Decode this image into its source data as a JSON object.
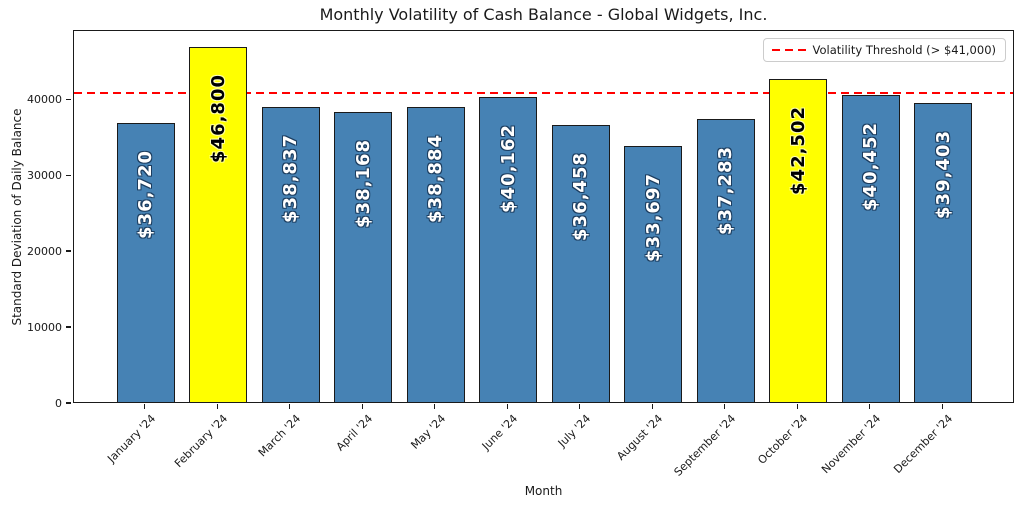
{
  "title": "Monthly Volatility of Cash Balance - Global Widgets, Inc.",
  "chart_data": {
    "type": "bar",
    "title": "Monthly Volatility of Cash Balance - Global Widgets, Inc.",
    "xlabel": "Month",
    "ylabel": "Standard Deviation of Daily Balance",
    "categories": [
      "January '24",
      "February '24",
      "March '24",
      "April '24",
      "May '24",
      "June '24",
      "July '24",
      "August '24",
      "September '24",
      "October '24",
      "November '24",
      "December '24"
    ],
    "values": [
      36720,
      46800,
      38837,
      38168,
      38884,
      40162,
      36458,
      33697,
      37283,
      42502,
      40452,
      39403
    ],
    "value_labels": [
      "$36,720",
      "$46,800",
      "$38,837",
      "$38,168",
      "$38,884",
      "$40,162",
      "$36,458",
      "$33,697",
      "$37,283",
      "$42,502",
      "$40,452",
      "$39,403"
    ],
    "highlighted_categories": [
      "February '24",
      "October '24"
    ],
    "yticks": [
      0,
      10000,
      20000,
      30000,
      40000
    ],
    "ylim": [
      0,
      49140
    ],
    "grid": false,
    "legend_position": "upper right",
    "threshold": {
      "value": 41000,
      "label": "Volatility Threshold (> $41,000)"
    },
    "colors": {
      "bar": "#4682B4",
      "highlight": "#FFFF00",
      "threshold_line": "#FF0000",
      "bar_edge": "#1a1a1a"
    }
  }
}
